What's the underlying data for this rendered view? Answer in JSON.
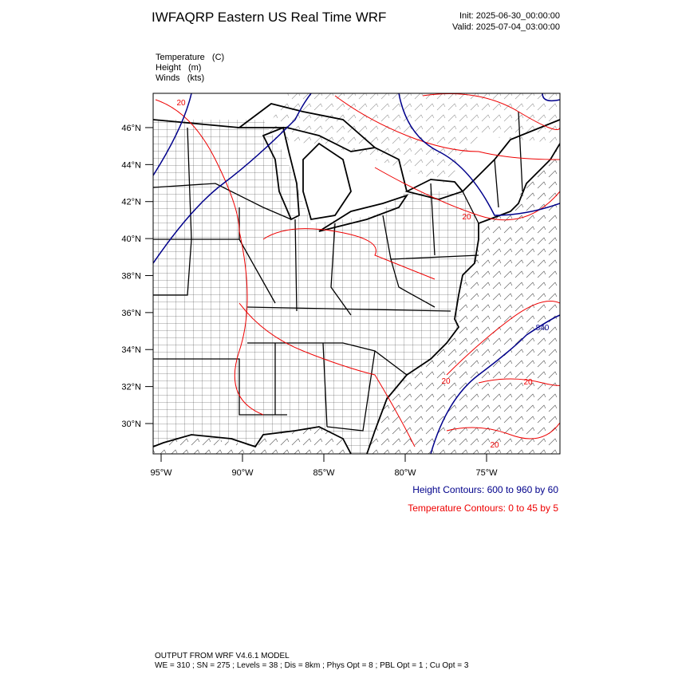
{
  "header": {
    "title": "IWFAQRP Eastern US Real Time WRF",
    "init": "Init: 2025-06-30_00:00:00",
    "valid": "Valid: 2025-07-04_03:00:00"
  },
  "fields": [
    "Temperature   (C)",
    "Height   (m)",
    "Winds   (kts)"
  ],
  "map": {
    "lat_ticks": [
      {
        "value": 30,
        "label": "30°N"
      },
      {
        "value": 32,
        "label": "32°N"
      },
      {
        "value": 34,
        "label": "34°N"
      },
      {
        "value": 36,
        "label": "36°N"
      },
      {
        "value": 38,
        "label": "38°N"
      },
      {
        "value": 40,
        "label": "40°N"
      },
      {
        "value": 42,
        "label": "42°N"
      },
      {
        "value": 44,
        "label": "44°N"
      },
      {
        "value": 46,
        "label": "46°N"
      }
    ],
    "lon_ticks": [
      {
        "value": -95,
        "label": "95°W"
      },
      {
        "value": -90,
        "label": "90°W"
      },
      {
        "value": -85,
        "label": "85°W"
      },
      {
        "value": -80,
        "label": "80°W"
      },
      {
        "value": -75,
        "label": "75°W"
      }
    ],
    "contour_labels": [
      "20",
      "20",
      "20",
      "20",
      "20",
      "840"
    ]
  },
  "legend": [
    "Height Contours: 600 to 960 by 60",
    "Temperature Contours: 0 to 45 by 5"
  ],
  "footer": [
    "OUTPUT FROM WRF V4.6.1 MODEL",
    "WE = 310 ; SN = 275 ; Levels = 38 ; Dis = 8km ; Phys Opt = 8 ; PBL Opt = 1 ; Cu Opt = 3"
  ]
}
